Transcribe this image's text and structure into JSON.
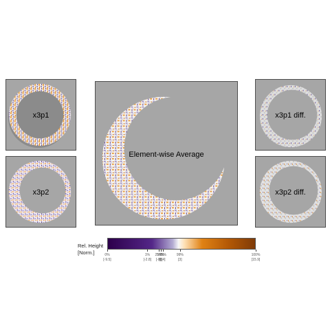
{
  "panels": {
    "x3p1": "x3p1",
    "x3p2": "x3p2",
    "average": "Element-wise Average",
    "diff1": "x3p1 diff.",
    "diff2": "x3p2 diff."
  },
  "legend": {
    "title_line1": "Rel. Height",
    "title_line2": "[Norm.]",
    "ticks": [
      {
        "pct": "0%",
        "val": "[-9.5]",
        "pos": 0.0
      },
      {
        "pct": "1%",
        "val": "[-2.8]",
        "pos": 0.27
      },
      {
        "pct": "25%",
        "val": "[-0]",
        "pos": 0.345
      },
      {
        "pct": "50%",
        "val": "[0]",
        "pos": 0.36
      },
      {
        "pct": "75%",
        "val": "[.4]",
        "pos": 0.375
      },
      {
        "pct": "99%",
        "val": "[3]",
        "pos": 0.49
      },
      {
        "pct": "100%",
        "val": "[15.9]",
        "pos": 1.0
      }
    ]
  },
  "colors": {
    "background": "#a6a6a6",
    "low": "#2d004b",
    "mid": "#f7f7f7",
    "high": "#7f3b08"
  }
}
